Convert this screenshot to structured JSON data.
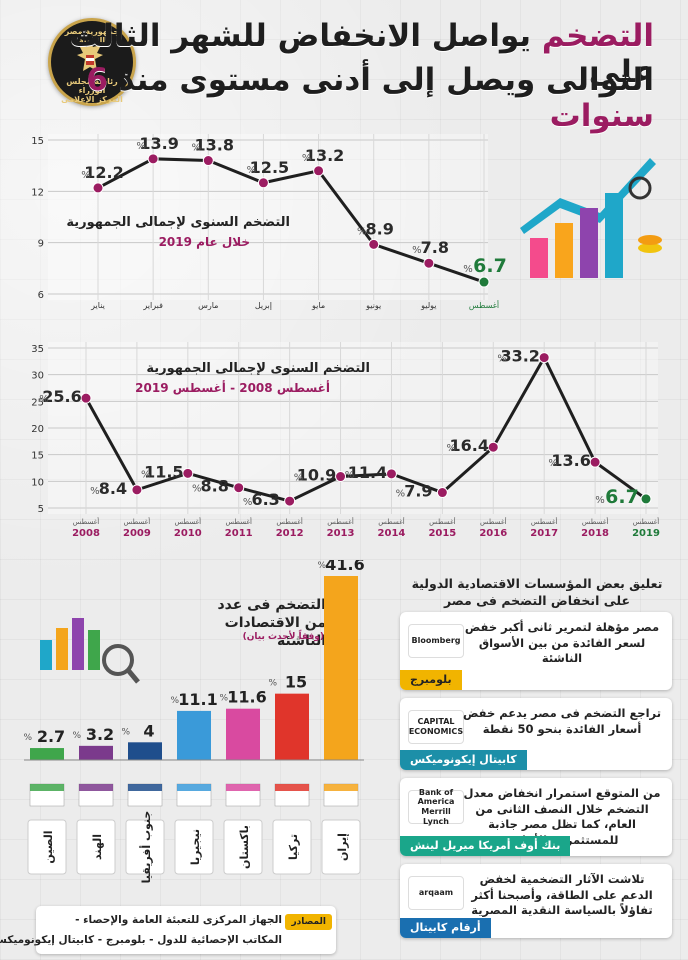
{
  "header": {
    "title_line1_highlight": "التضخم",
    "title_line1_rest": "يواصل الانخفاض للشهر الثالث على",
    "title_line2_main": "التوالى ويصل إلى أدنى مستوى منذ",
    "title_line2_highlight": "6 سنوات",
    "logo_text_top": "جمهورية مصر العربية",
    "logo_text_mid": "رئاسة مجلس الوزراء",
    "logo_text_bottom": "المركز الإعلامى"
  },
  "colors": {
    "accent": "#9b1c61",
    "green": "#1f7a3a",
    "line": "#1f1f1f"
  },
  "chart_data": [
    {
      "type": "line",
      "title": "التضخم السنوى لإجمالى الجمهورية",
      "subtitle": "خلال عام 2019",
      "categories": [
        "يناير",
        "فبراير",
        "مارس",
        "إبريل",
        "مايو",
        "يونيو",
        "يوليو",
        "أغسطس"
      ],
      "values": [
        12.2,
        13.9,
        13.8,
        12.5,
        13.2,
        8.9,
        7.8,
        6.7
      ],
      "value_labels": [
        "12.2",
        "13.9",
        "13.8",
        "12.5",
        "13.2",
        "8.9",
        "7.8",
        "6.7"
      ],
      "pct": "%",
      "yticks": [
        6,
        9,
        12,
        15
      ],
      "ylim": [
        6,
        15
      ],
      "grid": true
    },
    {
      "type": "line",
      "title": "التضخم السنوى لإجمالى الجمهورية",
      "subtitle": "أغسطس 2008 - أغسطس 2019",
      "month": "أغسطس",
      "categories": [
        "2008",
        "2009",
        "2010",
        "2011",
        "2012",
        "2013",
        "2014",
        "2015",
        "2016",
        "2017",
        "2018",
        "2019"
      ],
      "values": [
        25.6,
        8.4,
        11.5,
        8.8,
        6.3,
        10.9,
        11.4,
        7.9,
        16.4,
        33.2,
        13.6,
        6.7
      ],
      "value_labels": [
        "25.6",
        "8.4",
        "11.5",
        "8.8",
        "6.3",
        "10.9",
        "11.4",
        "7.9",
        "16.4",
        "33.2",
        "13.6",
        "6.7"
      ],
      "pct": "%",
      "yticks": [
        5,
        10,
        15,
        20,
        25,
        30,
        35
      ],
      "ylim": [
        5,
        35
      ],
      "grid": true
    },
    {
      "type": "bar",
      "title": "التضخم فى عدد من الاقتصادات الناشئة",
      "subtitle": "(وفقاً لأحدث بيان)",
      "categories": [
        "الصين",
        "الهند",
        "جنوب أفريقيا",
        "نيجيريا",
        "باكستان",
        "تركيا",
        "إيران"
      ],
      "values": [
        2.7,
        3.2,
        4,
        11.1,
        11.6,
        15,
        41.6
      ],
      "value_labels": [
        "2.7",
        "3.2",
        "4",
        "11.1",
        "11.6",
        "15",
        "41.6"
      ],
      "pct": "%",
      "bar_colors": [
        "#3fa64b",
        "#7b3a8c",
        "#1f4e8c",
        "#3a9ad9",
        "#d94aa0",
        "#e0352b",
        "#f4a51c"
      ]
    }
  ],
  "institutions": {
    "title": "تعليق بعض المؤسسات الاقتصادية الدولية على انخفاض التضخم فى مصر",
    "items": [
      {
        "text": "مصر مؤهلة لتمرير ثانى أكبر خفض لسعر الفائدة من بين الأسواق الناشئة",
        "tag": "بلومبرج",
        "logo": "Bloomberg",
        "tag_color": "#f1b400"
      },
      {
        "text": "تراجع التضخم فى مصر يدعم خفض أسعار الفائدة بنحو 50 نقطة",
        "tag": "كابيتال إيكونوميكس",
        "logo": "CAPITAL ECONOMICS",
        "tag_color": "#1c8fa8"
      },
      {
        "text": "من المتوقع استمرار انخفاض معدل التضخم خلال النصف الثانى من العام، كما تظل مصر جاذبة للمستثمرين الأجانب",
        "tag": "بنك أوف أمريكا ميريل لينش",
        "logo": "Bank of America Merrill Lynch",
        "tag_color": "#1aa68a"
      },
      {
        "text": "تلاشت الآثار التضخمية لخفض الدعم على الطاقة، وأصبحنا أكثر تفاؤلاً بالسياسة النقدية المصرية",
        "tag": "أرقام كابيتال",
        "logo": "arqaam",
        "tag_color": "#1a6fb0"
      }
    ]
  },
  "footer": {
    "tag": "المصادر",
    "line1": "الجهاز المركزى للتعبئة العامة والإحصاء -",
    "line2": "المكاتب الإحصائية للدول - بلومبرج - كابيتال إيكونوميكس"
  }
}
